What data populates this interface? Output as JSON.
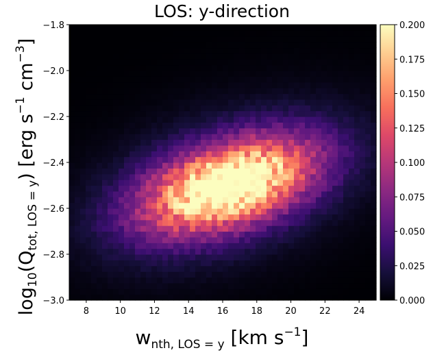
{
  "chart_data": {
    "type": "heatmap",
    "title": "LOS: y-direction",
    "xlabel": {
      "main": "w",
      "sub": "nth, LOS = y",
      "unit_pre": "[km s",
      "sup": "−1",
      "unit_post": "]"
    },
    "ylabel": {
      "pre": "log",
      "sub1": "10",
      "mid": "(Q",
      "sub2": "tot, LOS = y",
      "unit_pre": ") [erg s",
      "sup1": "−1",
      "unit_mid": " cm",
      "sup2": "−3",
      "unit_post": "]"
    },
    "xlim": [
      7,
      25
    ],
    "ylim": [
      -3.0,
      -1.8
    ],
    "x_ticks": [
      "8",
      "10",
      "12",
      "14",
      "16",
      "18",
      "20",
      "22",
      "24"
    ],
    "y_ticks": [
      "−3.0",
      "−2.8",
      "−2.6",
      "−2.4",
      "−2.2",
      "−2.0",
      "−1.8"
    ],
    "colorbar": {
      "min": 0.0,
      "max": 0.2,
      "colormap": "magma",
      "ticks": [
        "0.000",
        "0.025",
        "0.050",
        "0.075",
        "0.100",
        "0.125",
        "0.150",
        "0.175",
        "0.200"
      ]
    },
    "distribution": {
      "peak_x": 16.3,
      "peak_y": -2.5,
      "sigma_major": 3.6,
      "sigma_minor_dex": 0.12,
      "slope_dex_per_kms": 0.024,
      "peak_value": 0.21,
      "bins_x": 56,
      "bins_y": 48
    },
    "colors": {
      "background": "#ffffff",
      "axis": "#000000",
      "noise_seed": 7
    }
  }
}
